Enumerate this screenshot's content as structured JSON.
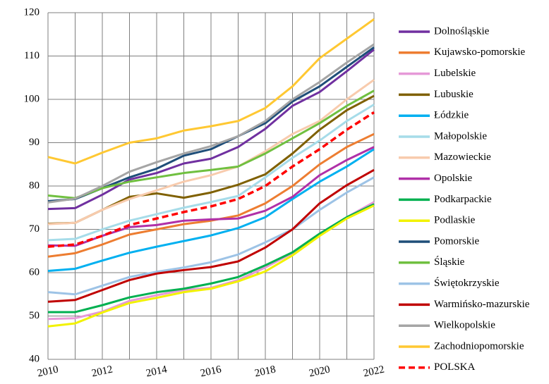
{
  "chart_data": {
    "type": "line",
    "x": [
      2010,
      2011,
      2012,
      2013,
      2014,
      2015,
      2016,
      2017,
      2018,
      2019,
      2020,
      2021,
      2022
    ],
    "xlim": [
      2010,
      2022
    ],
    "xticks": [
      2010,
      2012,
      2014,
      2016,
      2018,
      2020,
      2022
    ],
    "ylim": [
      40,
      120
    ],
    "yticks": [
      40,
      50,
      60,
      70,
      80,
      90,
      100,
      110,
      120
    ],
    "grid": true,
    "legend": "right",
    "series": [
      {
        "name": "Dolnośląskie",
        "color": "#7030a0",
        "values": [
          74.7,
          74.9,
          78,
          81.5,
          83,
          85.2,
          86.3,
          89,
          93.2,
          98.5,
          101.7,
          106.5,
          111.5
        ]
      },
      {
        "name": "Kujawsko-pomorskie",
        "color": "#ed7d31",
        "values": [
          63.7,
          64.5,
          66.5,
          68.8,
          70,
          71.2,
          72,
          73.2,
          76,
          80,
          85,
          89,
          92
        ]
      },
      {
        "name": "Lubelskie",
        "color": "#e699d8",
        "values": [
          49.3,
          49.5,
          51,
          53.5,
          54.8,
          56,
          56.5,
          58.3,
          61.2,
          64.5,
          69,
          72.8,
          76.3
        ]
      },
      {
        "name": "Lubuskie",
        "color": "#7f6000",
        "values": [
          71.3,
          71.5,
          74.5,
          77.5,
          78.3,
          77.3,
          78.5,
          80.3,
          82.7,
          87.5,
          93,
          97.5,
          100.8
        ]
      },
      {
        "name": "Łódzkie",
        "color": "#00b0f0",
        "values": [
          60.4,
          60.9,
          62.8,
          64.6,
          66,
          67.3,
          68.6,
          70.3,
          72.8,
          77,
          81,
          84.5,
          88.5
        ]
      },
      {
        "name": "Małopolskie",
        "color": "#a6dce9",
        "values": [
          67.5,
          67.8,
          70,
          72,
          73.5,
          75,
          76.3,
          77.7,
          82,
          86.5,
          90.5,
          95,
          98.8
        ]
      },
      {
        "name": "Mazowieckie",
        "color": "#f8cbad",
        "values": [
          71.2,
          71.5,
          74.5,
          77,
          79,
          81,
          82.5,
          84.5,
          88,
          92,
          95,
          100,
          104.5
        ]
      },
      {
        "name": "Opolskie",
        "color": "#b030a8",
        "values": [
          66.3,
          66.2,
          68.5,
          70.5,
          71,
          72,
          72.3,
          72.5,
          74.3,
          77.5,
          82.5,
          86,
          89
        ]
      },
      {
        "name": "Podkarpackie",
        "color": "#00b050",
        "values": [
          50.9,
          50.9,
          52.5,
          54.3,
          55.5,
          56.3,
          57.5,
          59,
          61.7,
          64.7,
          69,
          72.8,
          75.8
        ]
      },
      {
        "name": "Podlaskie",
        "color": "#f2f200",
        "values": [
          47.6,
          48.3,
          50.8,
          53,
          54.2,
          55.5,
          56.3,
          58,
          60.3,
          64,
          68.5,
          72.5,
          75.5
        ]
      },
      {
        "name": "Pomorskie",
        "color": "#1f4e79",
        "values": [
          76.5,
          77,
          79.5,
          82,
          84,
          87,
          88.5,
          91.5,
          94.5,
          99.5,
          103,
          107.5,
          112
        ]
      },
      {
        "name": "Śląskie",
        "color": "#70c040",
        "values": [
          77.8,
          77.2,
          79.5,
          81,
          82,
          83,
          83.7,
          84.5,
          87.5,
          91,
          94.5,
          98.5,
          102
        ]
      },
      {
        "name": "Świętokrzyskie",
        "color": "#9dc3e6",
        "values": [
          55.5,
          55,
          57,
          59,
          60.2,
          61.2,
          62.4,
          64.2,
          67,
          70,
          74.5,
          78.5,
          82
        ]
      },
      {
        "name": "Warmińsko-mazurskie",
        "color": "#c00000",
        "values": [
          53.3,
          53.7,
          56,
          58.3,
          59.8,
          60.6,
          61.3,
          62.6,
          65.8,
          70,
          76,
          80.2,
          83.7
        ]
      },
      {
        "name": "Wielkopolskie",
        "color": "#a5a5a5",
        "values": [
          76.2,
          77.1,
          80,
          83.3,
          85.5,
          87.5,
          89.2,
          91.5,
          95,
          100,
          104,
          108.5,
          112.7
        ]
      },
      {
        "name": "Zachodniopomorskie",
        "color": "#ffc832",
        "values": [
          86.7,
          85.2,
          87.7,
          90,
          91,
          92.8,
          93.8,
          95,
          98,
          103,
          109.5,
          114,
          118.5
        ]
      },
      {
        "name": "POLSKA",
        "color": "#ff0000",
        "style": "dashed",
        "values": [
          66,
          66.5,
          68.5,
          71,
          72.5,
          74,
          75.3,
          77,
          80,
          84.5,
          88.5,
          93,
          97
        ]
      }
    ]
  }
}
